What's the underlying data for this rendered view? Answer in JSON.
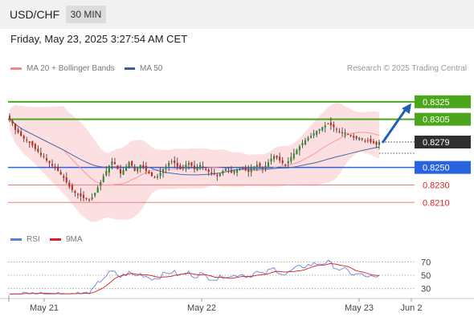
{
  "header": {
    "pair": "USD/CHF",
    "timeframe": "30 MIN",
    "datetime": "Friday, May 23, 2025 3:27:54 AM CET"
  },
  "legend": {
    "ma20_label": "MA 20 + Bollinger Bands",
    "ma50_label": "MA 50",
    "credit": "Research © 2025 Trading Central"
  },
  "rsi_legend": {
    "rsi_label": "RSI",
    "ma_label": "9MA"
  },
  "colors": {
    "resistance": "#4ca61c",
    "pivot": "#2a63e0",
    "support": "#f08080",
    "support_text": "#e02020",
    "last_price_bg": "#2f2f2f",
    "arrow": "#1f5fb8",
    "ma20": "#f59b9b",
    "ma50": "#4a6aa8",
    "band": "#fbd9dc",
    "candle_up": "#2e8b2e",
    "candle_down": "#c8281f",
    "rsi": "#6a87d4",
    "rsi_ma": "#d43030"
  },
  "chart_data": [
    {
      "type": "candlestick",
      "title": "",
      "x_ticks": [
        "May 21",
        "May 22",
        "May 23",
        "Jun 2"
      ],
      "ylim": [
        0.818,
        0.8345
      ],
      "levels": {
        "resistance": [
          {
            "label": "0.8325",
            "value": 0.8325
          },
          {
            "label": "0.8305",
            "value": 0.8305
          }
        ],
        "pivot": {
          "label": "0.8250",
          "value": 0.825
        },
        "support": [
          {
            "label": "0.8230",
            "value": 0.823
          },
          {
            "label": "0.8210",
            "value": 0.821
          }
        ],
        "last_price": {
          "label": "0.8279",
          "value": 0.8279
        }
      },
      "close": [
        0.8305,
        0.83,
        0.8293,
        0.829,
        0.8286,
        0.8283,
        0.8281,
        0.8278,
        0.8275,
        0.8271,
        0.8268,
        0.8264,
        0.8262,
        0.8258,
        0.8255,
        0.8252,
        0.8249,
        0.8246,
        0.8242,
        0.8238,
        0.8233,
        0.8228,
        0.8224,
        0.8221,
        0.8219,
        0.8217,
        0.8215,
        0.8214,
        0.8213,
        0.8216,
        0.8221,
        0.8227,
        0.8233,
        0.824,
        0.8246,
        0.8252,
        0.8257,
        0.8254,
        0.8248,
        0.8243,
        0.8247,
        0.8251,
        0.8256,
        0.8252,
        0.8246,
        0.8249,
        0.8253,
        0.825,
        0.8246,
        0.8243,
        0.824,
        0.8238,
        0.824,
        0.8244,
        0.8248,
        0.8251,
        0.8255,
        0.8257,
        0.8255,
        0.8251,
        0.8248,
        0.825,
        0.8253,
        0.8255,
        0.8252,
        0.8248,
        0.825,
        0.8253,
        0.825,
        0.8247,
        0.8245,
        0.8244,
        0.8242,
        0.824,
        0.8243,
        0.8246,
        0.8248,
        0.8246,
        0.8244,
        0.8246,
        0.8248,
        0.825,
        0.8249,
        0.8247,
        0.8245,
        0.8248,
        0.8251,
        0.8253,
        0.8251,
        0.8249,
        0.8252,
        0.8256,
        0.826,
        0.8263,
        0.8261,
        0.8258,
        0.8255,
        0.8253,
        0.8257,
        0.8262,
        0.8266,
        0.827,
        0.8274,
        0.8278,
        0.8281,
        0.8284,
        0.8286,
        0.8289,
        0.8292,
        0.8294,
        0.8296,
        0.8298,
        0.83,
        0.8298,
        0.8296,
        0.8293,
        0.8291,
        0.8289,
        0.829,
        0.8288,
        0.8286,
        0.8284,
        0.8283,
        0.8284,
        0.8282,
        0.828,
        0.8281,
        0.8279,
        0.8278,
        0.8276,
        0.8279
      ],
      "ma_20_last": 0.8287,
      "ma_50_last": 0.8268,
      "projection": {
        "from": 0.8279,
        "to": 0.8325
      }
    },
    {
      "type": "line",
      "title": "",
      "y_ticks": [
        30,
        50,
        70
      ],
      "ylim": [
        20,
        80
      ],
      "series_names": [
        "RSI",
        "9MA"
      ],
      "rsi_last": 51,
      "ma_last": 52
    }
  ]
}
